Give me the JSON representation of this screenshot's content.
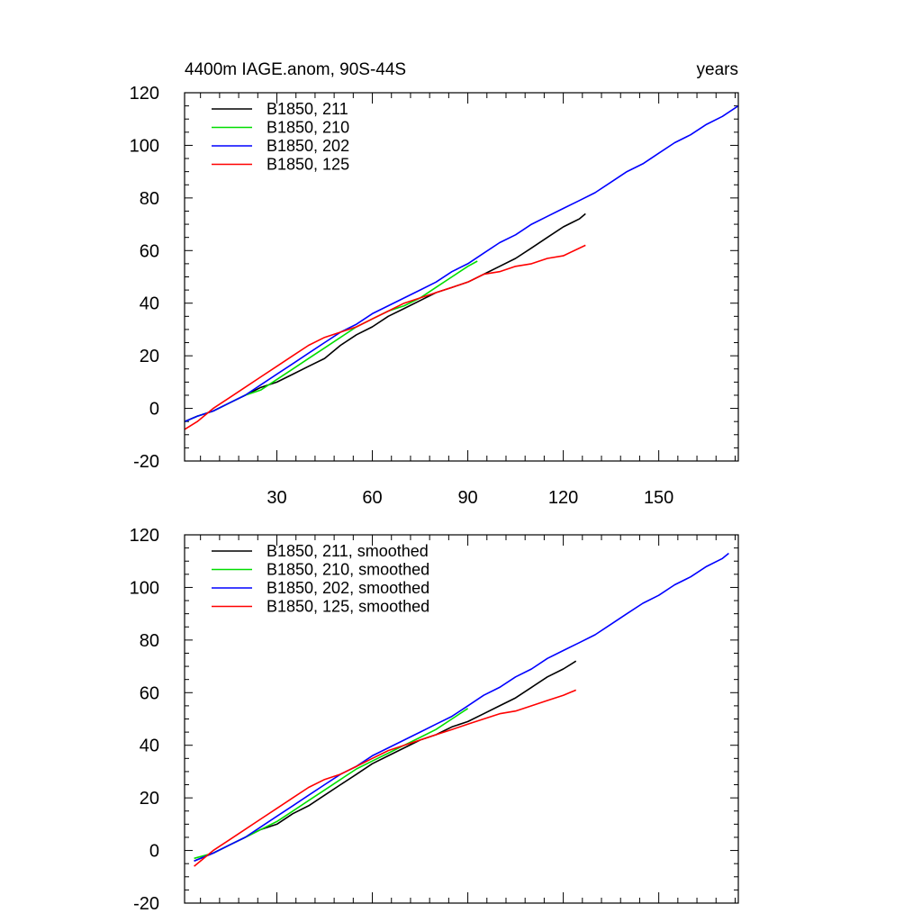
{
  "colors": {
    "B1850_211": "#000000",
    "B1850_210": "#00dd00",
    "B1850_202": "#0000ff",
    "B1850_125": "#ff0000"
  },
  "chart_data": [
    {
      "type": "line",
      "title": "4400m IAGE.anom, 90S-44S",
      "right_title": "years",
      "xlabel": "",
      "ylabel": "",
      "xlim": [
        1,
        175
      ],
      "ylim": [
        -20,
        120
      ],
      "xticks": [
        30,
        60,
        90,
        120,
        150
      ],
      "yticks": [
        -20,
        0,
        20,
        40,
        60,
        80,
        100,
        120
      ],
      "show_x_tick_labels": true,
      "legend_position": "top-left",
      "series": [
        {
          "name": "B1850, 211",
          "color_key": "B1850_211",
          "x": [
            1,
            5,
            10,
            15,
            20,
            25,
            30,
            35,
            40,
            45,
            50,
            55,
            60,
            65,
            70,
            75,
            80,
            85,
            90,
            95,
            100,
            105,
            110,
            115,
            120,
            125,
            127
          ],
          "y": [
            -5,
            -3,
            -1,
            2,
            5,
            8,
            10,
            13,
            16,
            19,
            24,
            28,
            31,
            35,
            38,
            41,
            44,
            46,
            48,
            51,
            54,
            57,
            61,
            65,
            69,
            72,
            74
          ]
        },
        {
          "name": "B1850, 210",
          "color_key": "B1850_210",
          "x": [
            1,
            5,
            10,
            15,
            20,
            25,
            30,
            35,
            40,
            45,
            50,
            55,
            60,
            65,
            70,
            75,
            80,
            85,
            90,
            93
          ],
          "y": [
            -5,
            -3,
            -1,
            2,
            5,
            7,
            11,
            15,
            19,
            23,
            27,
            31,
            34,
            37,
            39,
            42,
            46,
            50,
            54,
            56
          ]
        },
        {
          "name": "B1850, 202",
          "color_key": "B1850_202",
          "x": [
            1,
            5,
            10,
            15,
            20,
            25,
            30,
            35,
            40,
            45,
            50,
            55,
            60,
            65,
            70,
            75,
            80,
            85,
            90,
            95,
            100,
            105,
            110,
            115,
            120,
            125,
            130,
            135,
            140,
            145,
            150,
            155,
            160,
            165,
            170,
            175
          ],
          "y": [
            -5,
            -3,
            -1,
            2,
            5,
            9,
            13,
            17,
            21,
            25,
            29,
            32,
            36,
            39,
            42,
            45,
            48,
            52,
            55,
            59,
            63,
            66,
            70,
            73,
            76,
            79,
            82,
            86,
            90,
            93,
            97,
            101,
            104,
            108,
            111,
            115
          ]
        },
        {
          "name": "B1850, 125",
          "color_key": "B1850_125",
          "x": [
            1,
            5,
            10,
            15,
            20,
            25,
            30,
            35,
            40,
            45,
            50,
            55,
            60,
            65,
            70,
            75,
            80,
            85,
            90,
            95,
            100,
            105,
            110,
            115,
            120,
            127
          ],
          "y": [
            -8,
            -5,
            0,
            4,
            8,
            12,
            16,
            20,
            24,
            27,
            29,
            31,
            34,
            37,
            40,
            42,
            44,
            46,
            48,
            51,
            52,
            54,
            55,
            57,
            58,
            62
          ]
        }
      ]
    },
    {
      "type": "line",
      "title": "",
      "xlabel": "",
      "ylabel": "",
      "xlim": [
        1,
        175
      ],
      "ylim": [
        -20,
        120
      ],
      "xticks": [
        30,
        60,
        90,
        120,
        150
      ],
      "yticks": [
        -20,
        0,
        20,
        40,
        60,
        80,
        100,
        120
      ],
      "show_x_tick_labels": false,
      "legend_position": "top-left",
      "series": [
        {
          "name": "B1850, 211, smoothed",
          "color_key": "B1850_211",
          "x": [
            4,
            10,
            15,
            20,
            25,
            30,
            35,
            40,
            45,
            50,
            55,
            60,
            65,
            70,
            75,
            80,
            85,
            90,
            95,
            100,
            105,
            110,
            115,
            120,
            124
          ],
          "y": [
            -4,
            -1,
            2,
            5,
            8,
            10,
            14,
            17,
            21,
            25,
            29,
            33,
            36,
            39,
            42,
            44,
            47,
            49,
            52,
            55,
            58,
            62,
            66,
            69,
            72
          ]
        },
        {
          "name": "B1850, 210, smoothed",
          "color_key": "B1850_210",
          "x": [
            4,
            10,
            15,
            20,
            25,
            30,
            35,
            40,
            45,
            50,
            55,
            60,
            65,
            70,
            75,
            80,
            85,
            90
          ],
          "y": [
            -3,
            -1,
            2,
            5,
            8,
            11,
            15,
            19,
            23,
            27,
            31,
            34,
            37,
            40,
            43,
            46,
            50,
            54
          ]
        },
        {
          "name": "B1850, 202, smoothed",
          "color_key": "B1850_202",
          "x": [
            4,
            10,
            15,
            20,
            25,
            30,
            35,
            40,
            45,
            50,
            55,
            60,
            65,
            70,
            75,
            80,
            85,
            90,
            95,
            100,
            105,
            110,
            115,
            120,
            125,
            130,
            135,
            140,
            145,
            150,
            155,
            160,
            165,
            170,
            172
          ],
          "y": [
            -4,
            -1,
            2,
            5,
            9,
            13,
            17,
            21,
            25,
            29,
            32,
            36,
            39,
            42,
            45,
            48,
            51,
            55,
            59,
            62,
            66,
            69,
            73,
            76,
            79,
            82,
            86,
            90,
            94,
            97,
            101,
            104,
            108,
            111,
            113
          ]
        },
        {
          "name": "B1850, 125, smoothed",
          "color_key": "B1850_125",
          "x": [
            4,
            10,
            15,
            20,
            25,
            30,
            35,
            40,
            45,
            50,
            55,
            60,
            65,
            70,
            75,
            80,
            85,
            90,
            95,
            100,
            105,
            110,
            115,
            120,
            124
          ],
          "y": [
            -6,
            0,
            4,
            8,
            12,
            16,
            20,
            24,
            27,
            29,
            32,
            35,
            38,
            40,
            42,
            44,
            46,
            48,
            50,
            52,
            53,
            55,
            57,
            59,
            61
          ]
        }
      ]
    }
  ]
}
